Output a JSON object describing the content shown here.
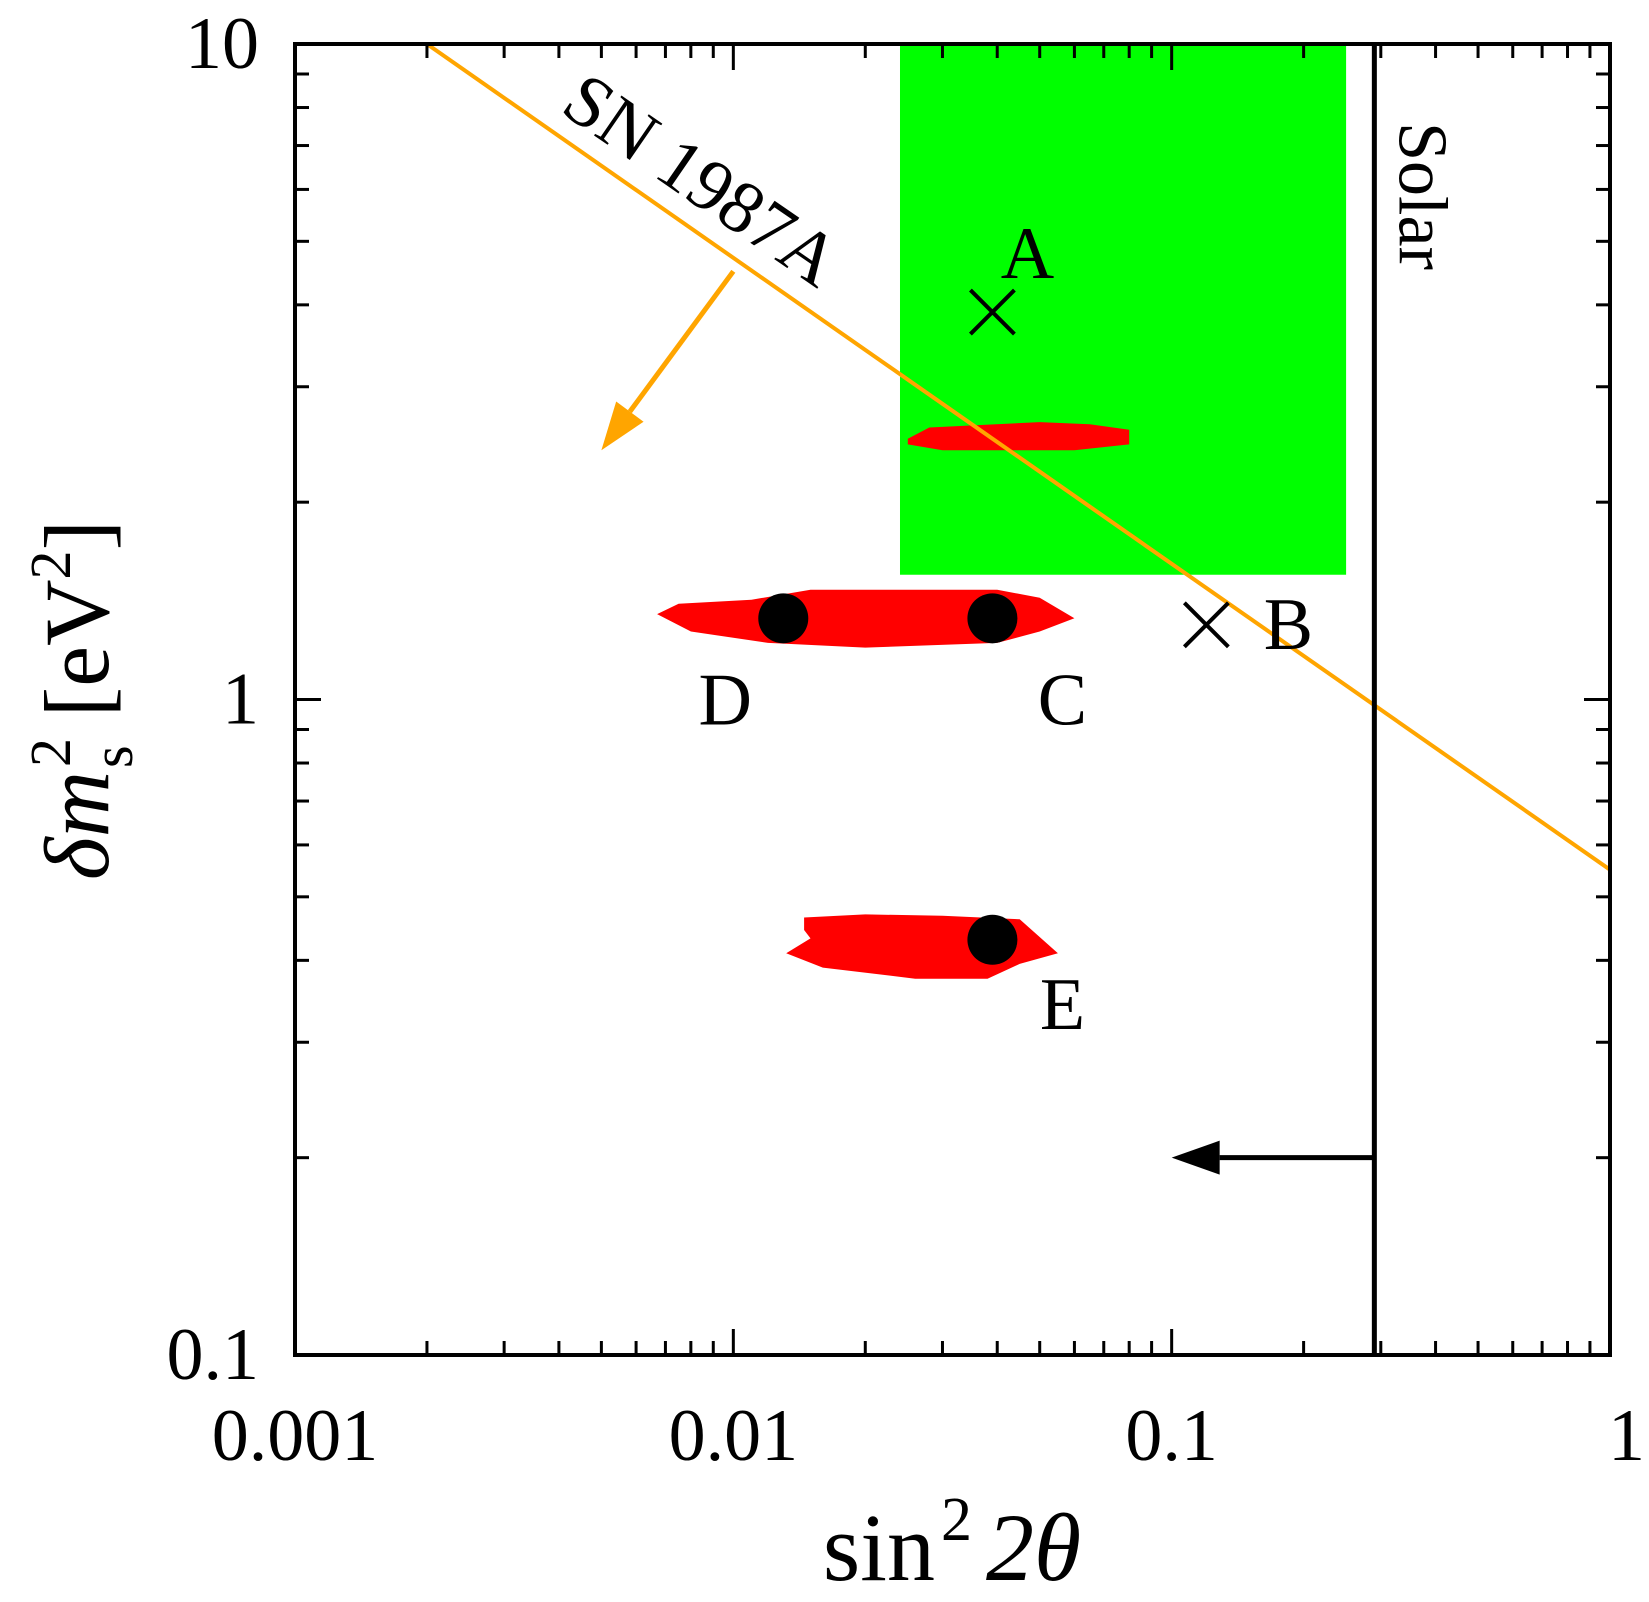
{
  "chart_data": {
    "type": "scatter",
    "x_scale": "log",
    "y_scale": "log",
    "xlim": [
      0.001,
      1
    ],
    "ylim": [
      0.1,
      10
    ],
    "xlabel": {
      "base": "sin",
      "exp": "2",
      "rest": "2θ"
    },
    "ylabel": {
      "base": "δm",
      "sup": "2",
      "sub": "s",
      "unit": "[eV",
      "unit_sup": "2",
      "unit_close": "]"
    },
    "x_ticks": [
      {
        "value": 0.001,
        "label": "0.001"
      },
      {
        "value": 0.01,
        "label": "0.01"
      },
      {
        "value": 0.1,
        "label": "0.1"
      },
      {
        "value": 1,
        "label": "1"
      }
    ],
    "y_ticks": [
      {
        "value": 0.1,
        "label": "0.1"
      },
      {
        "value": 1,
        "label": "1"
      },
      {
        "value": 10,
        "label": "10"
      }
    ],
    "green_region": {
      "x": [
        0.024,
        0.25
      ],
      "y": [
        1.55,
        10
      ],
      "color": "#00ff00"
    },
    "sn1987a_line": {
      "label": "SN 1987A",
      "color": "#ffa500",
      "points": [
        [
          0.002,
          10
        ],
        [
          1,
          0.55
        ]
      ]
    },
    "solar_line": {
      "label": "Solar",
      "x": 0.29,
      "color": "#000000"
    },
    "red_regions": [
      {
        "color": "#ff0000",
        "points": [
          [
            0.025,
            2.5
          ],
          [
            0.028,
            2.6
          ],
          [
            0.05,
            2.65
          ],
          [
            0.065,
            2.63
          ],
          [
            0.08,
            2.58
          ],
          [
            0.08,
            2.45
          ],
          [
            0.06,
            2.4
          ],
          [
            0.03,
            2.4
          ],
          [
            0.025,
            2.45
          ]
        ]
      },
      {
        "color": "#ff0000",
        "points": [
          [
            0.0067,
            1.35
          ],
          [
            0.0075,
            1.4
          ],
          [
            0.011,
            1.42
          ],
          [
            0.015,
            1.47
          ],
          [
            0.04,
            1.47
          ],
          [
            0.05,
            1.43
          ],
          [
            0.06,
            1.33
          ],
          [
            0.05,
            1.27
          ],
          [
            0.04,
            1.22
          ],
          [
            0.02,
            1.2
          ],
          [
            0.012,
            1.22
          ],
          [
            0.008,
            1.27
          ]
        ]
      },
      {
        "color": "#ff0000",
        "points": [
          [
            0.0145,
            0.465
          ],
          [
            0.02,
            0.47
          ],
          [
            0.03,
            0.468
          ],
          [
            0.045,
            0.462
          ],
          [
            0.055,
            0.41
          ],
          [
            0.045,
            0.395
          ],
          [
            0.038,
            0.375
          ],
          [
            0.026,
            0.375
          ],
          [
            0.016,
            0.39
          ],
          [
            0.0132,
            0.41
          ],
          [
            0.015,
            0.432
          ],
          [
            0.0145,
            0.445
          ]
        ]
      }
    ],
    "points": [
      {
        "label": "A",
        "x": 0.039,
        "y": 3.9,
        "marker": "x"
      },
      {
        "label": "B",
        "x": 0.12,
        "y": 1.3,
        "marker": "x"
      },
      {
        "label": "C",
        "x": 0.039,
        "y": 1.33,
        "marker": "dot"
      },
      {
        "label": "D",
        "x": 0.013,
        "y": 1.33,
        "marker": "dot"
      },
      {
        "label": "E",
        "x": 0.039,
        "y": 0.43,
        "marker": "dot"
      }
    ],
    "arrows": [
      {
        "from": [
          0.01,
          4.5
        ],
        "to": [
          0.005,
          2.4
        ],
        "color": "#ffa500"
      },
      {
        "from": [
          0.29,
          0.2
        ],
        "to": [
          0.1,
          0.2
        ],
        "color": "#000000"
      }
    ]
  }
}
